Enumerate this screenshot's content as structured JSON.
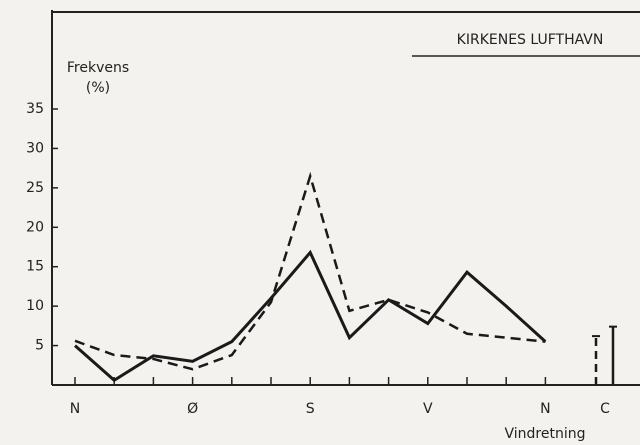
{
  "chart_data": {
    "type": "line",
    "title": "KIRKENES LUFTHAVN",
    "ylabel": [
      "Frekvens",
      "(%)"
    ],
    "xlabel": "Vindretning",
    "categories": [
      "N",
      null,
      null,
      "Ø",
      null,
      null,
      "S",
      null,
      null,
      "V",
      null,
      null,
      "N"
    ],
    "calm_label": "C",
    "series": [
      {
        "color": "#1a1a1a",
        "dashed": false,
        "values": [
          5,
          0.6,
          3.7,
          3.0,
          5.5,
          11,
          16.8,
          6,
          10.8,
          7.8,
          14.3,
          10,
          5.5
        ],
        "calm": 7.4
      },
      {
        "color": "#1a1a1a",
        "dashed": true,
        "values": [
          5.6,
          3.8,
          3.3,
          2.0,
          3.8,
          10.5,
          26.5,
          9.4,
          10.8,
          9.2,
          6.5,
          6,
          5.5
        ],
        "calm": 6.2
      }
    ],
    "ylim": [
      0,
      35
    ],
    "yticks": [
      5,
      10,
      15,
      20,
      25,
      30,
      35
    ]
  }
}
